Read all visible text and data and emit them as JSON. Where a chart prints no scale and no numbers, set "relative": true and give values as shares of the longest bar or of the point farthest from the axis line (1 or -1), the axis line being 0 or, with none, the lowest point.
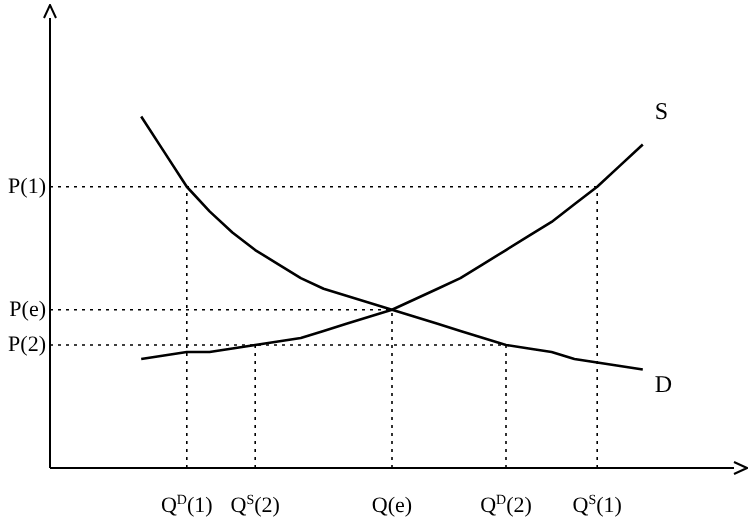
{
  "chart_data": {
    "type": "line",
    "relative": true,
    "tick_labels": "x",
    "marker": "none",
    "line_style": "solid",
    "legend": false,
    "grid": false,
    "categories": [
      null,
      null,
      null,
      null,
      null,
      null,
      "Q$^{D}$(1)",
      null,
      null,
      "Q$^{S}$(2)",
      null,
      null,
      null,
      null,
      null,
      "Q(e)",
      null,
      null,
      null,
      null,
      "Q$^{D}$(2)",
      null,
      null,
      null,
      "Q$^{S}$(1)",
      null,
      null,
      null,
      null,
      null,
      null
    ],
    "series": [
      {
        "name": "S",
        "color": "#000000",
        "values": [
          null,
          null,
          null,
          null,
          0.31,
          0.32,
          0.33,
          0.33,
          0.34,
          0.35,
          0.36,
          0.37,
          0.39,
          0.41,
          0.43,
          0.45,
          0.48,
          0.51,
          0.54,
          0.58,
          0.62,
          0.66,
          0.7,
          0.75,
          0.8,
          0.86,
          0.92,
          null,
          null,
          null,
          null
        ]
      },
      {
        "name": "D",
        "color": "#000000",
        "values": [
          null,
          null,
          null,
          null,
          1.0,
          0.9,
          0.8,
          0.73,
          0.67,
          0.62,
          0.58,
          0.54,
          0.51,
          0.49,
          0.47,
          0.45,
          0.43,
          0.41,
          0.39,
          0.37,
          0.35,
          0.34,
          0.33,
          0.31,
          0.3,
          0.29,
          0.28,
          null,
          null,
          null,
          null
        ]
      }
    ],
    "ref_lines": [
      {
        "axis": "y",
        "value": 0.8,
        "label": "P(1)",
        "line_style": "dotted"
      },
      {
        "axis": "y",
        "value": 0.45,
        "label": "P(e)",
        "line_style": "dotted"
      },
      {
        "axis": "y",
        "value": 0.35,
        "label": "P(2)",
        "line_style": "dotted"
      },
      {
        "axis": "x",
        "value": "Q$^{D}$(1)",
        "line_style": "dotted"
      },
      {
        "axis": "x",
        "value": "Q$^{S}$(2)",
        "line_style": "dotted"
      },
      {
        "axis": "x",
        "value": "Q(e)",
        "line_style": "dotted"
      },
      {
        "axis": "x",
        "value": "Q$^{D}$(2)",
        "line_style": "dotted"
      },
      {
        "axis": "x",
        "value": "Q$^{S}$(1)",
        "line_style": "dotted"
      }
    ]
  }
}
